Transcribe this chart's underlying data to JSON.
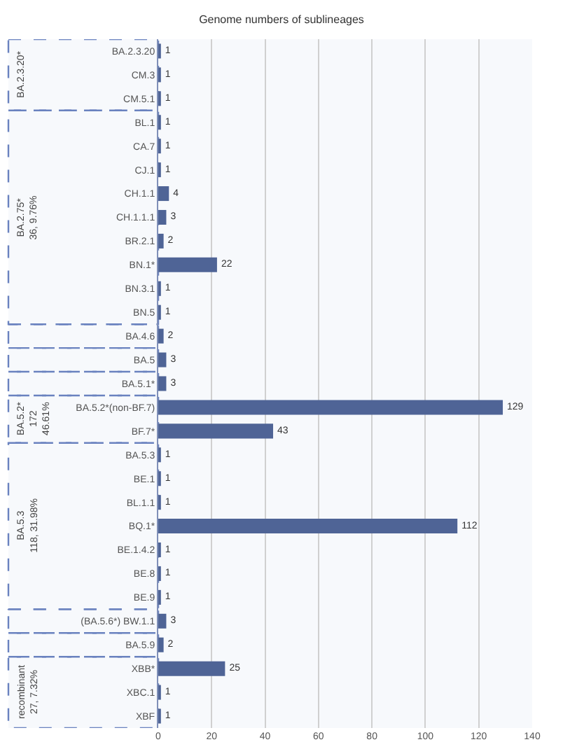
{
  "chart_data": {
    "type": "bar",
    "orientation": "horizontal",
    "title": "Genome numbers of sublineages",
    "categories": [
      "BA.2.3.20",
      "CM.3",
      "CM.5.1",
      "BL.1",
      "CA.7",
      "CJ.1",
      "CH.1.1",
      "CH.1.1.1",
      "BR.2.1",
      "BN.1*",
      "BN.3.1",
      "BN.5",
      "BA.4.6",
      "BA.5",
      "BA.5.1*",
      "BA.5.2*(non-BF.7)",
      "BF.7*",
      "BA.5.3",
      "BE.1",
      "BL.1.1",
      "BQ.1*",
      "BE.1.4.2",
      "BE.8",
      "BE.9",
      "(BA.5.6*) BW.1.1",
      "BA.5.9",
      "XBB*",
      "XBC.1",
      "XBF"
    ],
    "values": [
      1,
      1,
      1,
      1,
      1,
      1,
      4,
      3,
      2,
      22,
      1,
      1,
      2,
      3,
      3,
      129,
      43,
      1,
      1,
      1,
      112,
      1,
      1,
      1,
      3,
      2,
      25,
      1,
      1
    ],
    "color": "#4f6496",
    "data_labels": true,
    "xlim": [
      0,
      140
    ],
    "xticks": [
      0,
      20,
      40,
      60,
      80,
      100,
      120,
      140
    ],
    "grid": "x",
    "bands": [
      {
        "axis": "y",
        "from": "BA.2.3.20",
        "to": "CM.5.1",
        "label": "BA.2.3.20*",
        "color": "#6a82bf"
      },
      {
        "axis": "y",
        "from": "BL.1",
        "to": "BN.5",
        "label": "BA.2.75*\n36, 9.76%",
        "color": "#6a82bf"
      },
      {
        "axis": "y",
        "from": "BA.4.6",
        "to": "BA.4.6",
        "label": null,
        "color": "#6a82bf"
      },
      {
        "axis": "y",
        "from": "BA.5",
        "to": "BA.5",
        "label": null,
        "color": "#6a82bf"
      },
      {
        "axis": "y",
        "from": "BA.5.1*",
        "to": "BA.5.1*",
        "label": null,
        "color": "#6a82bf"
      },
      {
        "axis": "y",
        "from": "BA.5.2*(non-BF.7)",
        "to": "BF.7*",
        "label": "BA.5.2*\n172\n46.61%",
        "color": "#6a82bf"
      },
      {
        "axis": "y",
        "from": "BA.5.3",
        "to": "BE.9",
        "label": "BA.5.3\n118, 31.98%",
        "color": "#6a82bf"
      },
      {
        "axis": "y",
        "from": "(BA.5.6*) BW.1.1",
        "to": "(BA.5.6*) BW.1.1",
        "label": null,
        "color": "#6a82bf"
      },
      {
        "axis": "y",
        "from": "BA.5.9",
        "to": "BA.5.9",
        "label": null,
        "color": "#6a82bf"
      },
      {
        "axis": "y",
        "from": "XBB*",
        "to": "XBF",
        "label": "recombinant\n27, 7.32%",
        "color": "#6a82bf"
      }
    ]
  }
}
